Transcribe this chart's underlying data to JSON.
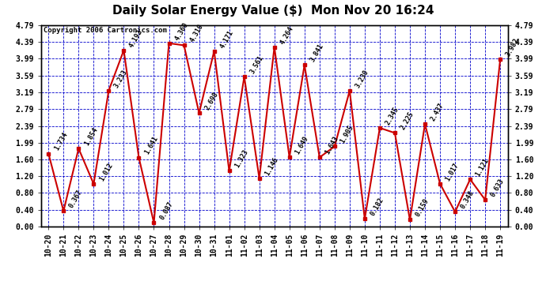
{
  "title": "Daily Solar Energy Value ($)  Mon Nov 20 16:24",
  "copyright": "Copyright 2006 Cartronics.com",
  "categories": [
    "10-20",
    "10-21",
    "10-22",
    "10-23",
    "10-24",
    "10-25",
    "10-26",
    "10-27",
    "10-28",
    "10-29",
    "10-30",
    "10-31",
    "11-01",
    "11-02",
    "11-03",
    "11-04",
    "11-05",
    "11-06",
    "11-07",
    "11-08",
    "11-09",
    "11-10",
    "11-11",
    "11-12",
    "11-13",
    "11-14",
    "11-15",
    "11-16",
    "11-17",
    "11-18",
    "11-19"
  ],
  "values": [
    1.734,
    0.367,
    1.854,
    1.012,
    3.233,
    4.192,
    1.641,
    0.087,
    4.36,
    4.31,
    2.698,
    4.171,
    1.323,
    3.561,
    1.146,
    4.264,
    1.649,
    3.841,
    1.643,
    1.905,
    3.23,
    0.182,
    2.345,
    2.225,
    0.159,
    2.437,
    1.017,
    0.348,
    1.121,
    0.633,
    3.982
  ],
  "line_color": "#CC0000",
  "marker_color": "#CC0000",
  "bg_color": "#FFFFFF",
  "plot_bg_color": "#FFFFFF",
  "grid_color": "#0000CC",
  "border_color": "#000000",
  "text_color": "#000000",
  "label_color": "#000000",
  "ylim_min": 0.0,
  "ylim_max": 4.79,
  "yticks": [
    0.0,
    0.4,
    0.8,
    1.2,
    1.6,
    1.99,
    2.39,
    2.79,
    3.19,
    3.59,
    3.99,
    4.39,
    4.79
  ],
  "title_fontsize": 11,
  "tick_fontsize": 7,
  "copyright_fontsize": 6.5,
  "data_label_fontsize": 6.0
}
